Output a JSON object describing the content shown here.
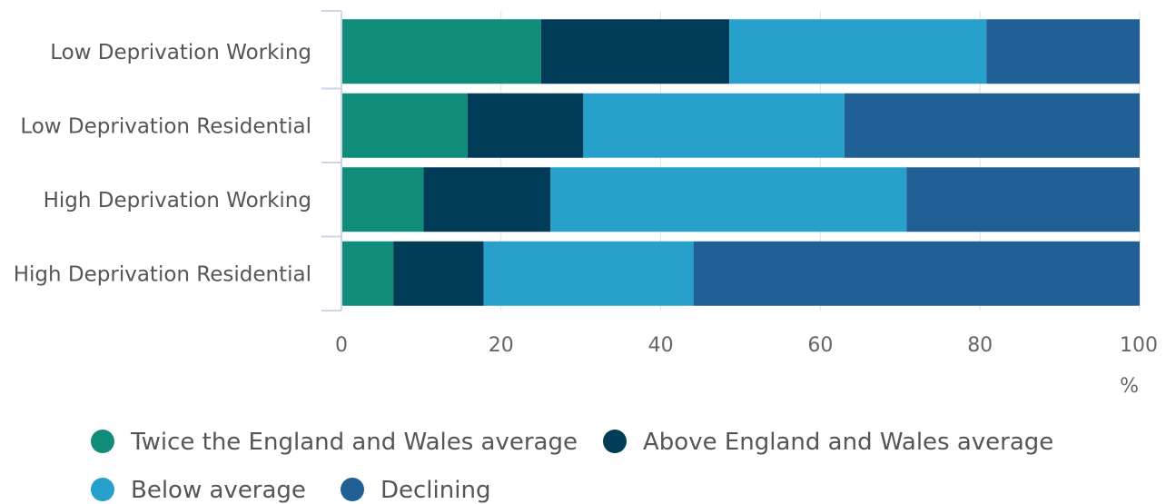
{
  "chart_data": {
    "type": "bar",
    "orientation": "horizontal",
    "stacked": true,
    "title": "",
    "xlabel": "",
    "ylabel": "",
    "x_unit": "%",
    "xlim": [
      0,
      100
    ],
    "x_ticks": [
      "0",
      "20",
      "40",
      "60",
      "80",
      "100"
    ],
    "grid": true,
    "legend_position": "bottom-left",
    "categories": [
      "Low Deprivation Working",
      "Low Deprivation Residential",
      "High Deprivation Working",
      "High Deprivation Residential"
    ],
    "series": [
      {
        "name": "Twice the England and Wales average",
        "color": "#118c7b",
        "values": [
          25,
          15.8,
          10.3,
          6.5
        ]
      },
      {
        "name": "Above England and Wales average",
        "color": "#003c57",
        "values": [
          23.6,
          14.5,
          15.9,
          11.3
        ]
      },
      {
        "name": "Below average",
        "color": "#27a0cc",
        "values": [
          32.2,
          32.7,
          44.6,
          26.3
        ]
      },
      {
        "name": "Declining",
        "color": "#206095",
        "values": [
          19.2,
          37,
          29.2,
          55.9
        ]
      }
    ]
  }
}
